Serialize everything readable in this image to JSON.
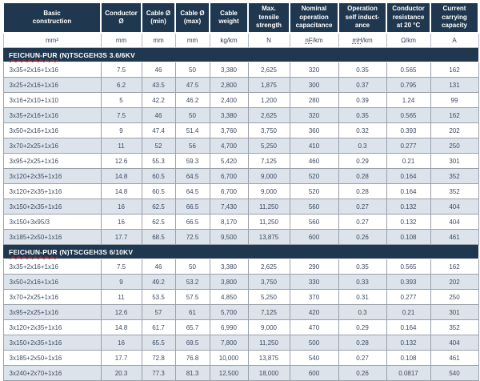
{
  "meta": {
    "header_bg": "#1f3850",
    "stripe_bg": "#dde3eb",
    "data_text_color": "#3d4c61",
    "spellcheck_color": "#cc2222"
  },
  "table": {
    "columns": [
      {
        "label": "Basic\nconstruction",
        "unit": "mm²",
        "unit_spellcheck": false
      },
      {
        "label": "Conductor\nØ",
        "unit": "mm",
        "unit_spellcheck": false
      },
      {
        "label": "Cable Ø\n(min)",
        "unit": "mm",
        "unit_spellcheck": false
      },
      {
        "label": "Cable Ø\n(max)",
        "unit": "mm",
        "unit_spellcheck": false
      },
      {
        "label": "Cable\nweight",
        "unit": "kg/km",
        "unit_spellcheck": false
      },
      {
        "label": "Max.\ntensile\nstrength",
        "unit": "N",
        "unit_spellcheck": false
      },
      {
        "label": "Nominal\noperation\ncapacitance",
        "unit": "nF/km",
        "unit_spellcheck": true
      },
      {
        "label": "Operation\nself induct-\nance",
        "unit": "mH/km",
        "unit_spellcheck": true
      },
      {
        "label": "Conductor\nresistance\nat 20 °C",
        "unit": "Ω/km",
        "unit_spellcheck": false
      },
      {
        "label": "Current\ncarrying\ncapacity",
        "unit": "A",
        "unit_spellcheck": false
      }
    ],
    "sections": [
      {
        "title_marked": "FEICHUN-PUR",
        "title_rest": " (N)TSCGEH3S 3.6/6KV",
        "rows": [
          [
            "3x35+2x16+1x16",
            "7.5",
            "46",
            "50",
            "3,380",
            "2,625",
            "320",
            "0.35",
            "0.565",
            "162"
          ],
          [
            "3x25+2x16+1x16",
            "6.2",
            "43.5",
            "47.5",
            "2,800",
            "1,875",
            "300",
            "0.37",
            "0.795",
            "131"
          ],
          [
            "3x16+2x10+1x10",
            "5",
            "42.2",
            "46.2",
            "2,400",
            "1,200",
            "280",
            "0.39",
            "1.24",
            "99"
          ],
          [
            "3x35+2x16+1x16",
            "7.5",
            "46",
            "50",
            "3,380",
            "2,625",
            "320",
            "0.35",
            "0.565",
            "162"
          ],
          [
            "3x50+2x16+1x16",
            "9",
            "47.4",
            "51.4",
            "3,760",
            "3,750",
            "360",
            "0.32",
            "0.393",
            "202"
          ],
          [
            "3x70+2x25+1x16",
            "11",
            "52",
            "56",
            "4,700",
            "5,250",
            "410",
            "0.3",
            "0.277",
            "250"
          ],
          [
            "3x95+2x25+1x16",
            "12.6",
            "55.3",
            "59.3",
            "5,420",
            "7,125",
            "460",
            "0.29",
            "0.21",
            "301"
          ],
          [
            "3x120+2x35+1x16",
            "14.8",
            "60.5",
            "64.5",
            "6,700",
            "9,000",
            "520",
            "0.28",
            "0.164",
            "352"
          ],
          [
            "3x120+2x35+1x16",
            "14.8",
            "60.5",
            "64.5",
            "6,700",
            "9,000",
            "520",
            "0.28",
            "0.164",
            "352"
          ],
          [
            "3x150+2x35+1x16",
            "16",
            "62.5",
            "66.5",
            "7,430",
            "11,250",
            "560",
            "0.27",
            "0.132",
            "404"
          ],
          [
            "3x150+3x95/3",
            "16",
            "62.5",
            "66.5",
            "8,170",
            "11,250",
            "560",
            "0.27",
            "0.132",
            "404"
          ],
          [
            "3x185+2x50+1x16",
            "17.7",
            "68.5",
            "72.5",
            "9,500",
            "13,875",
            "600",
            "0.26",
            "0.108",
            "461"
          ]
        ]
      },
      {
        "title_marked": "FEICHUN-PUR",
        "title_rest": " (N)TSCGEH3S 6/10KV",
        "rows": [
          [
            "3x35+2x16+1x16",
            "7.5",
            "46",
            "50",
            "3,380",
            "2,625",
            "290",
            "0.35",
            "0.565",
            "162"
          ],
          [
            "3x50+2x16+1x16",
            "9",
            "49.2",
            "53.2",
            "3,800",
            "3,750",
            "330",
            "0.33",
            "0.393",
            "202"
          ],
          [
            "3x70+2x25+1x16",
            "11",
            "53.5",
            "57.5",
            "4,850",
            "5,250",
            "370",
            "0.31",
            "0.277",
            "250"
          ],
          [
            "3x95+2x25+1x16",
            "12.6",
            "57",
            "61",
            "5,700",
            "7,125",
            "420",
            "0.3",
            "0.21",
            "301"
          ],
          [
            "3x120+2x35+1x16",
            "14.8",
            "61.7",
            "65.7",
            "6,990",
            "9,000",
            "470",
            "0.29",
            "0.164",
            "352"
          ],
          [
            "3x150+2x35+1x16",
            "16",
            "65.5",
            "69.5",
            "7,800",
            "11,250",
            "500",
            "0.28",
            "0.132",
            "404"
          ],
          [
            "3x185+2x50+1x16",
            "17.7",
            "72.8",
            "76.8",
            "10,000",
            "13,875",
            "540",
            "0.27",
            "0.108",
            "461"
          ],
          [
            "3x240+2x70+1x16",
            "20.3",
            "77.3",
            "81.3",
            "12,500",
            "18,000",
            "600",
            "0.26",
            "0.0817",
            "540"
          ]
        ]
      }
    ]
  }
}
